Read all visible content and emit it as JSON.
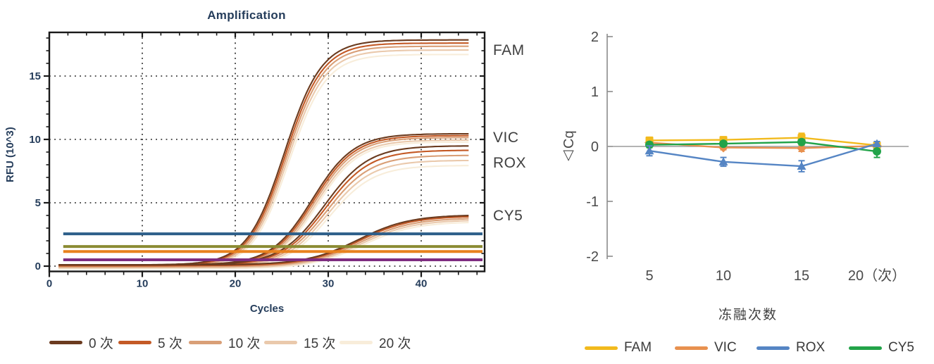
{
  "chart_data": [
    {
      "type": "line",
      "title": "Amplification",
      "xlabel": "Cycles",
      "ylabel": "RFU (10^3)",
      "xlim": [
        0,
        46.8
      ],
      "ylim": [
        -0.42,
        18.4
      ],
      "xticks": [
        0,
        10,
        20,
        30,
        40
      ],
      "x_minor_step": 2,
      "yticks": [
        0,
        5,
        10,
        15
      ],
      "y_minor_step": 1,
      "grid": "dotted",
      "axis_text_color": "#253D5B",
      "conditions": [
        {
          "label": "0 次",
          "color": "#6B3B1F"
        },
        {
          "label": "5 次",
          "color": "#C45A26"
        },
        {
          "label": "10 次",
          "color": "#D99F77"
        },
        {
          "label": "15 次",
          "color": "#EAC9AC"
        },
        {
          "label": "20 次",
          "color": "#F8EDDA"
        }
      ],
      "baseline_offsets": [
        0.1,
        0.04,
        -0.04,
        -0.12,
        -0.2
      ],
      "dyes": [
        {
          "name": "FAM",
          "midpoint": 25.3,
          "rate": 0.5,
          "plateaus": [
            17.85,
            17.6,
            17.35,
            17.05,
            16.7
          ],
          "label_value": 17.0
        },
        {
          "name": "VIC",
          "midpoint": 28.3,
          "rate": 0.45,
          "plateaus": [
            10.45,
            10.3,
            10.15,
            9.95,
            9.8
          ],
          "label_value": 10.1
        },
        {
          "name": "ROX",
          "midpoint": 29.6,
          "rate": 0.42,
          "plateaus": [
            9.5,
            9.15,
            8.75,
            8.35,
            7.95
          ],
          "label_value": 8.1
        },
        {
          "name": "CY5",
          "midpoint": 33.2,
          "rate": 0.36,
          "plateaus": [
            4.05,
            3.95,
            3.8,
            3.65,
            3.5
          ],
          "label_value": 3.95
        }
      ],
      "thresholds": [
        {
          "value": 2.55,
          "color": "#2D5F8A"
        },
        {
          "value": 1.55,
          "color": "#8B8B33"
        },
        {
          "value": 1.15,
          "color": "#E8821E"
        },
        {
          "value": 0.5,
          "color": "#7E2D80"
        }
      ]
    },
    {
      "type": "line",
      "xlabel": "冻融次数",
      "ylabel": "△Cq",
      "ylim": [
        -2,
        2
      ],
      "yticks": [
        2,
        1,
        0,
        -1,
        -2
      ],
      "x_tick_labels": [
        "5",
        "10",
        "15",
        "20（次）"
      ],
      "zero_line": true,
      "axis_color": "#8C8C8C",
      "axis_text_color": "#4A4A4A",
      "series": [
        {
          "name": "FAM",
          "color": "#F2BA1D",
          "marker": "square",
          "values": [
            0.11,
            0.12,
            0.16,
            0.02
          ],
          "errors": [
            0.05,
            0.04,
            0.08,
            0.03
          ]
        },
        {
          "name": "VIC",
          "color": "#E8914F",
          "marker": "diamond",
          "values": [
            0.07,
            -0.02,
            -0.03,
            0.01
          ],
          "errors": [
            0.04,
            0.04,
            0.06,
            0.03
          ]
        },
        {
          "name": "ROX",
          "color": "#5585C4",
          "marker": "triangle",
          "values": [
            -0.08,
            -0.28,
            -0.36,
            0.05
          ],
          "errors": [
            0.09,
            0.08,
            0.1,
            0.04
          ]
        },
        {
          "name": "CY5",
          "color": "#22A349",
          "marker": "circle",
          "values": [
            0.03,
            0.05,
            0.08,
            -0.09
          ],
          "errors": [
            0.05,
            0.04,
            0.05,
            0.11
          ]
        }
      ]
    }
  ]
}
